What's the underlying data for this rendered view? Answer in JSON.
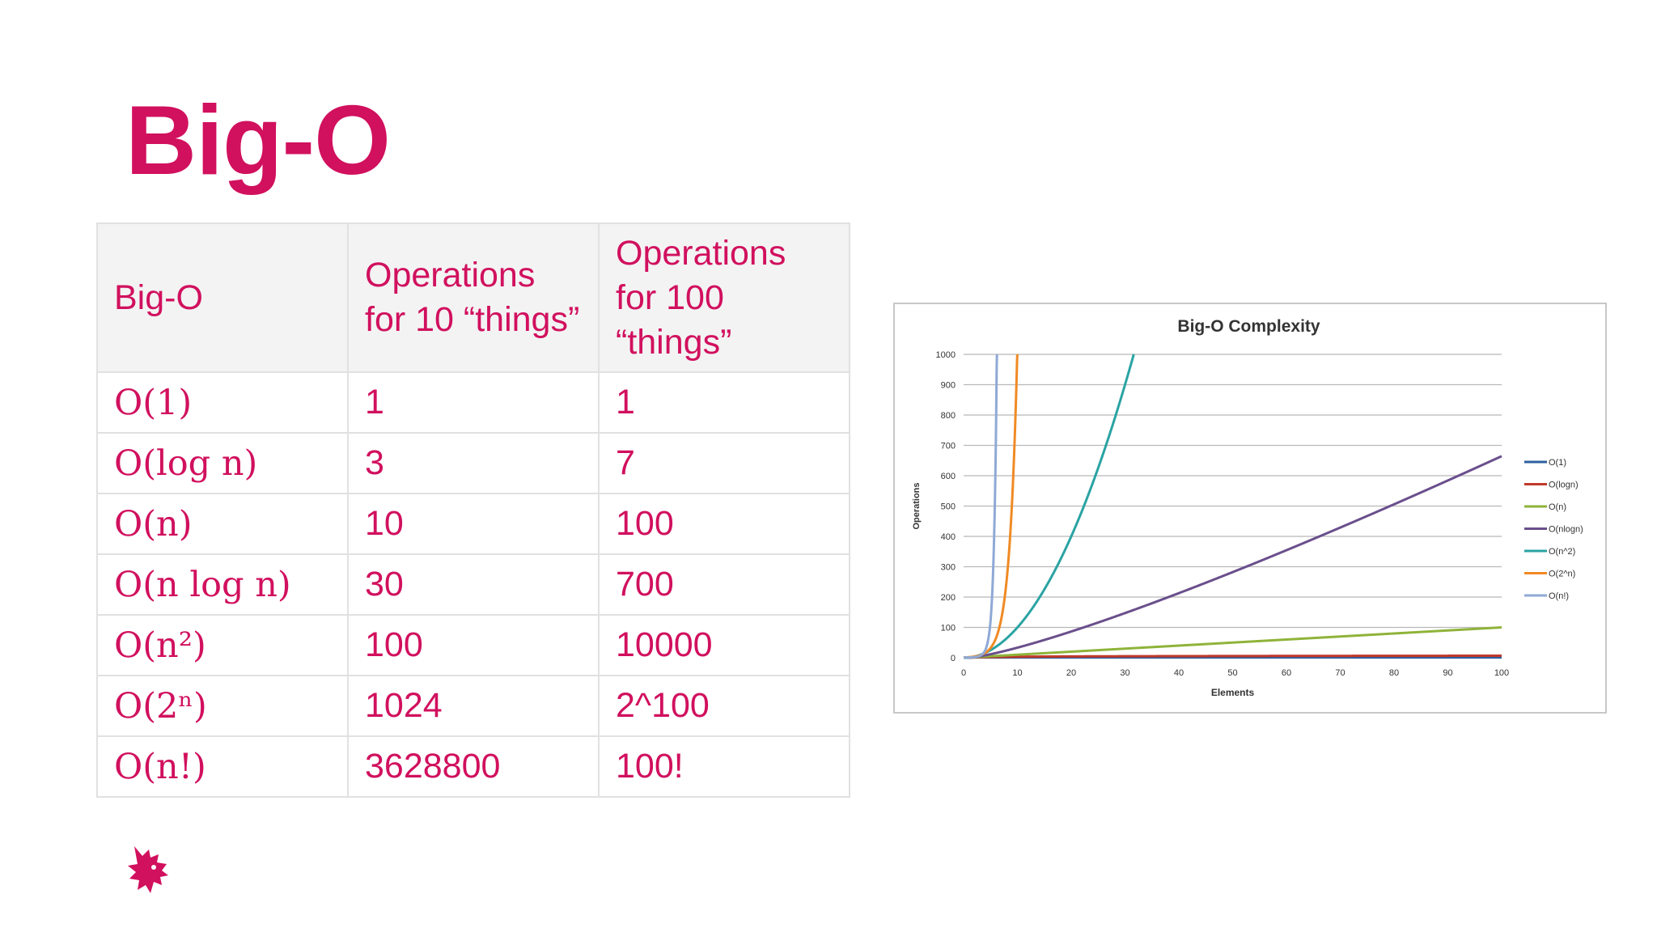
{
  "slide": {
    "title": "Big-O"
  },
  "table": {
    "headers": [
      "Big-O",
      "Operations for 10 “things”",
      "Operations for 100 “things”"
    ],
    "rows": [
      {
        "notation": "O(1)",
        "ops10": "1",
        "ops100": "1"
      },
      {
        "notation": "O(log n)",
        "ops10": "3",
        "ops100": "7"
      },
      {
        "notation": "O(n)",
        "ops10": "10",
        "ops100": "100"
      },
      {
        "notation": "O(n log n)",
        "ops10": "30",
        "ops100": "700"
      },
      {
        "notation": "O(n²)",
        "ops10": "100",
        "ops100": "10000"
      },
      {
        "notation": "O(2ⁿ)",
        "ops10": "1024",
        "ops100": "2^100"
      },
      {
        "notation": "O(n!)",
        "ops10": "3628800",
        "ops100": "100!"
      }
    ]
  },
  "chart_data": {
    "type": "line",
    "title": "Big-O Complexity",
    "xlabel": "Elements",
    "ylabel": "Operations",
    "xlim": [
      0,
      100
    ],
    "ylim": [
      0,
      1000
    ],
    "xticks": [
      0,
      10,
      20,
      30,
      40,
      50,
      60,
      70,
      80,
      90,
      100
    ],
    "yticks": [
      0,
      100,
      200,
      300,
      400,
      500,
      600,
      700,
      800,
      900,
      1000
    ],
    "grid": "horizontal",
    "legend_position": "right",
    "series": [
      {
        "name": "O(1)",
        "color": "#2e5f9e",
        "func": "const",
        "points": [
          [
            0,
            1
          ],
          [
            100,
            1
          ]
        ]
      },
      {
        "name": "O(logn)",
        "color": "#c0392b",
        "func": "log",
        "points": [
          [
            1,
            0
          ],
          [
            10,
            3.3
          ],
          [
            50,
            5.6
          ],
          [
            100,
            6.6
          ]
        ]
      },
      {
        "name": "O(n)",
        "color": "#8fb339",
        "func": "linear",
        "points": [
          [
            0,
            0
          ],
          [
            50,
            50
          ],
          [
            100,
            100
          ]
        ]
      },
      {
        "name": "O(nlogn)",
        "color": "#6a4f8c",
        "func": "nlogn",
        "points": [
          [
            1,
            0
          ],
          [
            10,
            33
          ],
          [
            50,
            282
          ],
          [
            100,
            664
          ]
        ]
      },
      {
        "name": "O(n^2)",
        "color": "#2aa3a3",
        "func": "square",
        "points": [
          [
            0,
            0
          ],
          [
            10,
            100
          ],
          [
            20,
            400
          ],
          [
            31.6,
            1000
          ]
        ]
      },
      {
        "name": "O(2^n)",
        "color": "#f08a24",
        "func": "exp2",
        "points": [
          [
            0,
            1
          ],
          [
            5,
            32
          ],
          [
            8,
            256
          ],
          [
            9.97,
            1000
          ]
        ]
      },
      {
        "name": "O(n!)",
        "color": "#8fa9d6",
        "func": "factorial",
        "points": [
          [
            1,
            1
          ],
          [
            4,
            24
          ],
          [
            5,
            120
          ],
          [
            6,
            720
          ],
          [
            6.5,
            1000
          ]
        ]
      }
    ]
  }
}
